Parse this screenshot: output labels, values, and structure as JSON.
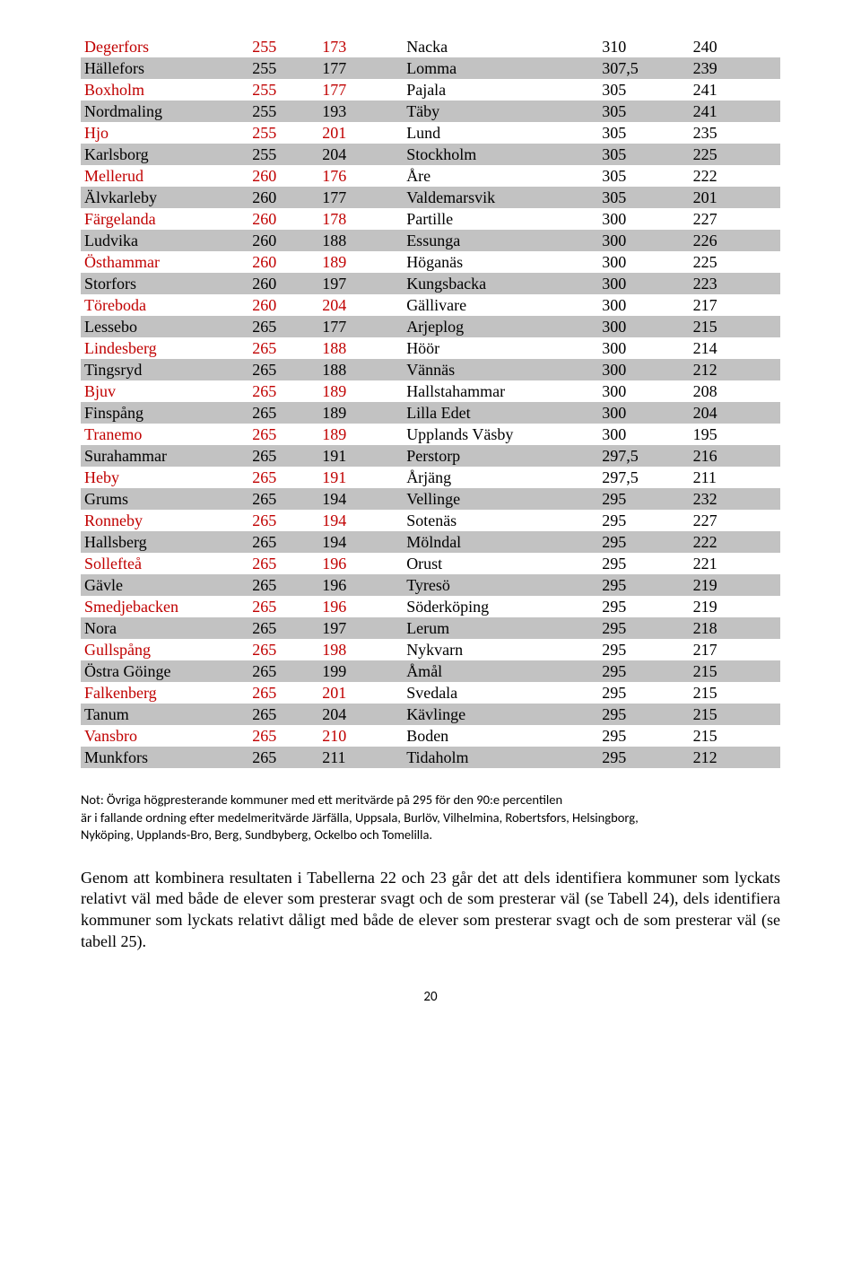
{
  "table": {
    "row_bg_even": "#c2c2c2",
    "text_color_highlight": "#c00000",
    "text_color_normal": "#000000",
    "rows": [
      {
        "even": false,
        "l": [
          "Degerfors",
          "255",
          "173"
        ],
        "r": [
          "Nacka",
          "310",
          "240"
        ],
        "hl": true,
        "hr": false
      },
      {
        "even": true,
        "l": [
          "Hällefors",
          "255",
          "177"
        ],
        "r": [
          "Lomma",
          "307,5",
          "239"
        ],
        "hl": false,
        "hr": false
      },
      {
        "even": false,
        "l": [
          "Boxholm",
          "255",
          "177"
        ],
        "r": [
          "Pajala",
          "305",
          "241"
        ],
        "hl": true,
        "hr": false
      },
      {
        "even": true,
        "l": [
          "Nordmaling",
          "255",
          "193"
        ],
        "r": [
          "Täby",
          "305",
          "241"
        ],
        "hl": false,
        "hr": false
      },
      {
        "even": false,
        "l": [
          "Hjo",
          "255",
          "201"
        ],
        "r": [
          "Lund",
          "305",
          "235"
        ],
        "hl": true,
        "hr": false
      },
      {
        "even": true,
        "l": [
          "Karlsborg",
          "255",
          "204"
        ],
        "r": [
          "Stockholm",
          "305",
          "225"
        ],
        "hl": false,
        "hr": false
      },
      {
        "even": false,
        "l": [
          "Mellerud",
          "260",
          "176"
        ],
        "r": [
          "Åre",
          "305",
          "222"
        ],
        "hl": true,
        "hr": false
      },
      {
        "even": true,
        "l": [
          "Älvkarleby",
          "260",
          "177"
        ],
        "r": [
          "Valdemarsvik",
          "305",
          "201"
        ],
        "hl": false,
        "hr": false
      },
      {
        "even": false,
        "l": [
          "Färgelanda",
          "260",
          "178"
        ],
        "r": [
          "Partille",
          "300",
          "227"
        ],
        "hl": true,
        "hr": false
      },
      {
        "even": true,
        "l": [
          "Ludvika",
          "260",
          "188"
        ],
        "r": [
          "Essunga",
          "300",
          "226"
        ],
        "hl": false,
        "hr": false
      },
      {
        "even": false,
        "l": [
          "Östhammar",
          "260",
          "189"
        ],
        "r": [
          "Höganäs",
          "300",
          "225"
        ],
        "hl": true,
        "hr": false
      },
      {
        "even": true,
        "l": [
          "Storfors",
          "260",
          "197"
        ],
        "r": [
          "Kungsbacka",
          "300",
          "223"
        ],
        "hl": false,
        "hr": false
      },
      {
        "even": false,
        "l": [
          "Töreboda",
          "260",
          "204"
        ],
        "r": [
          "Gällivare",
          "300",
          "217"
        ],
        "hl": true,
        "hr": false
      },
      {
        "even": true,
        "l": [
          "Lessebo",
          "265",
          "177"
        ],
        "r": [
          "Arjeplog",
          "300",
          "215"
        ],
        "hl": false,
        "hr": false
      },
      {
        "even": false,
        "l": [
          "Lindesberg",
          "265",
          "188"
        ],
        "r": [
          "Höör",
          "300",
          "214"
        ],
        "hl": true,
        "hr": false
      },
      {
        "even": true,
        "l": [
          "Tingsryd",
          "265",
          "188"
        ],
        "r": [
          "Vännäs",
          "300",
          "212"
        ],
        "hl": false,
        "hr": false
      },
      {
        "even": false,
        "l": [
          "Bjuv",
          "265",
          "189"
        ],
        "r": [
          "Hallstahammar",
          "300",
          "208"
        ],
        "hl": true,
        "hr": false
      },
      {
        "even": true,
        "l": [
          "Finspång",
          "265",
          "189"
        ],
        "r": [
          "Lilla Edet",
          "300",
          "204"
        ],
        "hl": false,
        "hr": false
      },
      {
        "even": false,
        "l": [
          "Tranemo",
          "265",
          "189"
        ],
        "r": [
          "Upplands Väsby",
          "300",
          "195"
        ],
        "hl": true,
        "hr": false
      },
      {
        "even": true,
        "l": [
          "Surahammar",
          "265",
          "191"
        ],
        "r": [
          "Perstorp",
          "297,5",
          "216"
        ],
        "hl": false,
        "hr": false
      },
      {
        "even": false,
        "l": [
          "Heby",
          "265",
          "191"
        ],
        "r": [
          "Årjäng",
          "297,5",
          "211"
        ],
        "hl": true,
        "hr": false
      },
      {
        "even": true,
        "l": [
          "Grums",
          "265",
          "194"
        ],
        "r": [
          "Vellinge",
          "295",
          "232"
        ],
        "hl": false,
        "hr": false
      },
      {
        "even": false,
        "l": [
          "Ronneby",
          "265",
          "194"
        ],
        "r": [
          "Sotenäs",
          "295",
          "227"
        ],
        "hl": true,
        "hr": false
      },
      {
        "even": true,
        "l": [
          "Hallsberg",
          "265",
          "194"
        ],
        "r": [
          "Mölndal",
          "295",
          "222"
        ],
        "hl": false,
        "hr": false
      },
      {
        "even": false,
        "l": [
          "Sollefteå",
          "265",
          "196"
        ],
        "r": [
          "Orust",
          "295",
          "221"
        ],
        "hl": true,
        "hr": false
      },
      {
        "even": true,
        "l": [
          "Gävle",
          "265",
          "196"
        ],
        "r": [
          "Tyresö",
          "295",
          "219"
        ],
        "hl": false,
        "hr": false
      },
      {
        "even": false,
        "l": [
          "Smedjebacken",
          "265",
          "196"
        ],
        "r": [
          "Söderköping",
          "295",
          "219"
        ],
        "hl": true,
        "hr": false
      },
      {
        "even": true,
        "l": [
          "Nora",
          "265",
          "197"
        ],
        "r": [
          "Lerum",
          "295",
          "218"
        ],
        "hl": false,
        "hr": false
      },
      {
        "even": false,
        "l": [
          "Gullspång",
          "265",
          "198"
        ],
        "r": [
          "Nykvarn",
          "295",
          "217"
        ],
        "hl": true,
        "hr": false
      },
      {
        "even": true,
        "l": [
          "Östra Göinge",
          "265",
          "199"
        ],
        "r": [
          "Åmål",
          "295",
          "215"
        ],
        "hl": false,
        "hr": false
      },
      {
        "even": false,
        "l": [
          "Falkenberg",
          "265",
          "201"
        ],
        "r": [
          "Svedala",
          "295",
          "215"
        ],
        "hl": true,
        "hr": false
      },
      {
        "even": true,
        "l": [
          "Tanum",
          "265",
          "204"
        ],
        "r": [
          "Kävlinge",
          "295",
          "215"
        ],
        "hl": false,
        "hr": false
      },
      {
        "even": false,
        "l": [
          "Vansbro",
          "265",
          "210"
        ],
        "r": [
          "Boden",
          "295",
          "215"
        ],
        "hl": true,
        "hr": false
      },
      {
        "even": true,
        "l": [
          "Munkfors",
          "265",
          "211"
        ],
        "r": [
          "Tidaholm",
          "295",
          "212"
        ],
        "hl": false,
        "hr": false
      }
    ]
  },
  "note": {
    "line1": "Not: Övriga högpresterande kommuner med ett meritvärde på 295 för den 90:e percentilen",
    "line2": "är i fallande ordning efter medelmeritvärde Järfälla, Uppsala, Burlöv, Vilhelmina, Robertsfors, Helsingborg,",
    "line3": "Nyköping, Upplands-Bro, Berg, Sundbyberg, Ockelbo och Tomelilla."
  },
  "bodytext": "Genom att kombinera resultaten i Tabellerna  22 och 23 går det att dels identifiera kommuner som lyckats relativt väl med både de elever som presterar svagt och de som presterar väl (se Tabell 24), dels identifiera kommuner som lyckats relativt dåligt med både de elever som presterar svagt och de som presterar väl (se tabell 25).",
  "pagenum": "20"
}
